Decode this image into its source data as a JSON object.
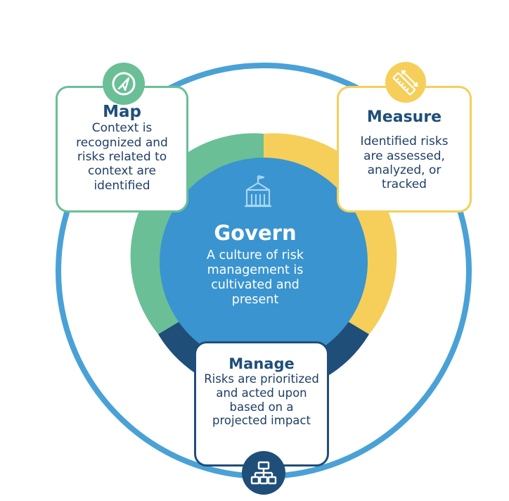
{
  "colors": {
    "outer_ring": "#4aa1d6",
    "map": "#6bbf96",
    "measure": "#f5cf5a",
    "manage": "#1f4e79",
    "govern": "#3a94d0",
    "text_dark": "#1f4e79"
  },
  "icons": {
    "map": "compass-icon",
    "measure": "ruler-icon",
    "manage": "hierarchy-icon",
    "govern": "building-icon"
  },
  "map": {
    "title": "Map",
    "body": [
      "Context is",
      "recognized and",
      "risks related to",
      "context are",
      "identified"
    ]
  },
  "measure": {
    "title": "Measure",
    "body": [
      "Identified risks",
      "are assessed,",
      "analyzed, or",
      "tracked"
    ]
  },
  "manage": {
    "title": "Manage",
    "body": [
      "Risks are prioritized",
      "and acted upon",
      "based on a",
      "projected impact"
    ]
  },
  "govern": {
    "title": "Govern",
    "body": [
      "A culture of risk",
      "management is",
      "cultivated and",
      "present"
    ]
  }
}
